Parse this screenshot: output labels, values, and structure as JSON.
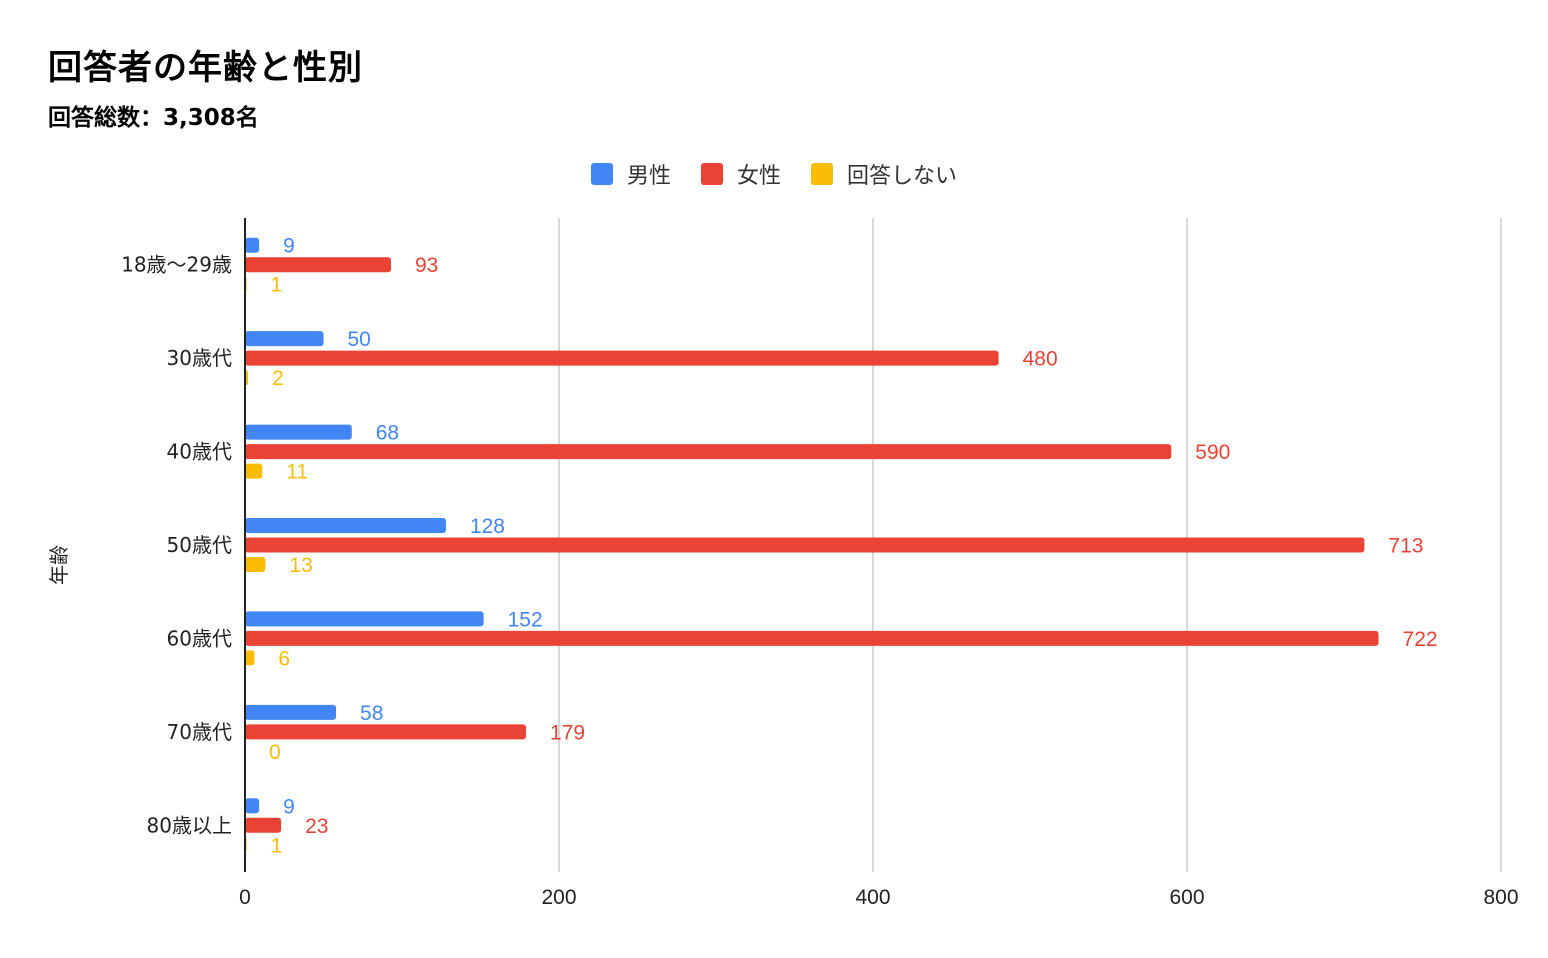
{
  "chart_data": {
    "type": "bar",
    "orientation": "horizontal",
    "title": "回答者の年齢と性別",
    "subtitle": "回答総数：3,308名",
    "ylabel": "年齢",
    "xlabel": "",
    "categories": [
      "18歳〜29歳",
      "30歳代",
      "40歳代",
      "50歳代",
      "60歳代",
      "70歳代",
      "80歳以上"
    ],
    "series": [
      {
        "name": "男性",
        "color": "#4285F4",
        "values": [
          9,
          50,
          68,
          128,
          152,
          58,
          9
        ]
      },
      {
        "name": "女性",
        "color": "#EA4335",
        "values": [
          93,
          480,
          590,
          713,
          722,
          179,
          23
        ]
      },
      {
        "name": "回答しない",
        "color": "#FBBC04",
        "values": [
          1,
          2,
          11,
          13,
          6,
          0,
          1
        ]
      }
    ],
    "xlim": [
      0,
      800
    ],
    "xticks": [
      "0",
      "200",
      "400",
      "600",
      "800"
    ],
    "grid": true,
    "legend_position": "top-center",
    "data_labels": true
  }
}
